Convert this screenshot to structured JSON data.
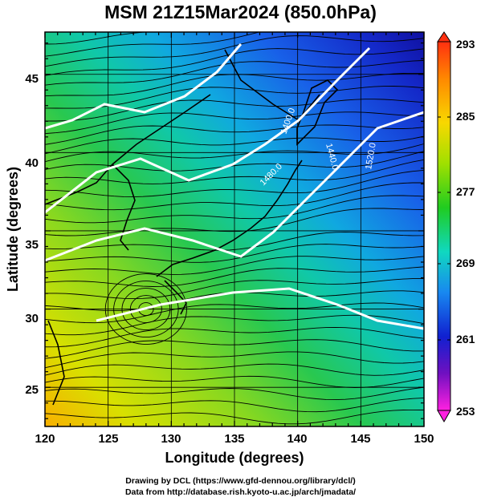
{
  "title": "MSM 21Z15Mar2024 (850.0hPa)",
  "axes": {
    "xlabel": "Longitude (degrees)",
    "ylabel": "Latitude  (degrees)",
    "xticks": [
      "120",
      "125",
      "130",
      "135",
      "140",
      "145",
      "150"
    ],
    "yticks": [
      "25",
      "30",
      "35",
      "40",
      "45"
    ]
  },
  "colorbar": {
    "labels": [
      "293",
      "285",
      "277",
      "269",
      "261",
      "253"
    ],
    "colors": [
      "#ff2a10",
      "#ff8a00",
      "#f8d600",
      "#9fe000",
      "#22cc1a",
      "#10d8b8",
      "#1a86f0",
      "#1020d0",
      "#7a10c0",
      "#ff20e0"
    ]
  },
  "contours": {
    "labels": [
      "1400.0",
      "1440.0",
      "1480.0",
      "1520.0"
    ]
  },
  "credits": {
    "line1": "Drawing by DCL (https://www.gfd-dennou.org/library/dcl/)",
    "line2": "Data from http://database.rish.kyoto-u.ac.jp/arch/jmadata/"
  },
  "chart_data": {
    "type": "heatmap",
    "title": "MSM 21Z15Mar2024 (850.0hPa)",
    "xlabel": "Longitude (degrees)",
    "ylabel": "Latitude  (degrees)",
    "xlim": [
      120,
      150
    ],
    "ylim": [
      22.5,
      47.7
    ],
    "colorbar_range": [
      253,
      293
    ],
    "colorbar_ticks": [
      253,
      261,
      269,
      277,
      285,
      293
    ],
    "contour_levels": [
      1400,
      1440,
      1480,
      1520
    ],
    "overlays": [
      "temperature shading",
      "geopotential height contours",
      "wind streamlines",
      "coastlines"
    ],
    "grid": true
  }
}
